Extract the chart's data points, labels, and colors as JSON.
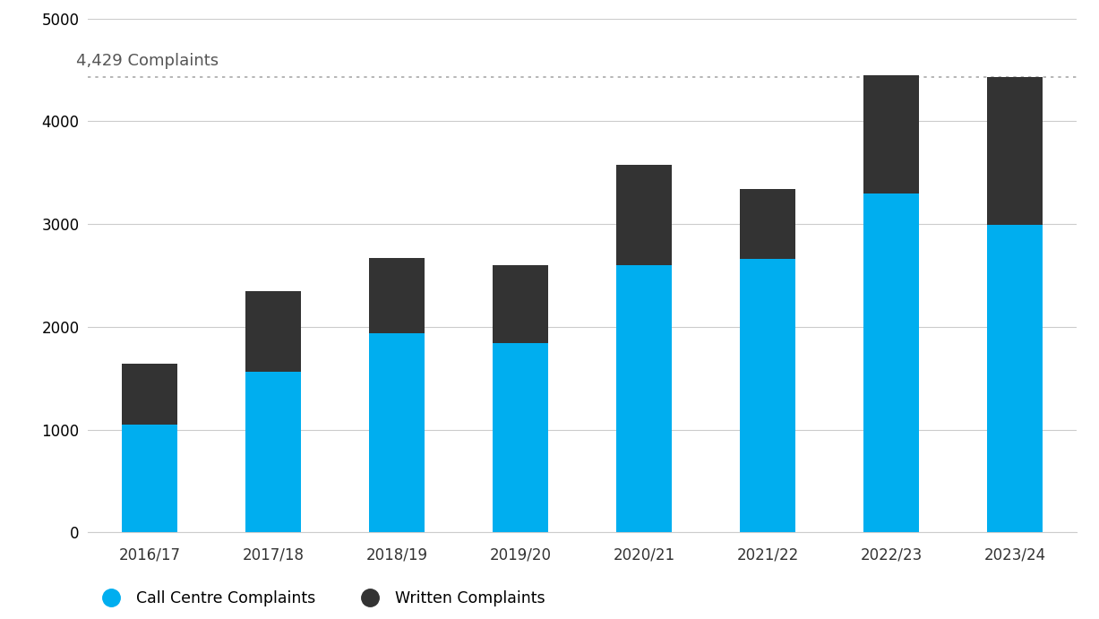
{
  "categories": [
    "2016/17",
    "2017/18",
    "2018/19",
    "2019/20",
    "2020/21",
    "2021/22",
    "2022/23",
    "2023/24"
  ],
  "call_centre": [
    1050,
    1560,
    1940,
    1840,
    2600,
    2660,
    3300,
    2990
  ],
  "written": [
    590,
    790,
    730,
    760,
    975,
    680,
    1150,
    1439
  ],
  "call_colour": "#00AEEF",
  "written_colour": "#333333",
  "annotation_text": "4,429 Complaints",
  "dotted_line_y": 4429,
  "ylim": [
    0,
    5000
  ],
  "yticks": [
    0,
    1000,
    2000,
    3000,
    4000,
    5000
  ],
  "legend_call": "Call Centre Complaints",
  "legend_written": "Written Complaints",
  "background_color": "#ffffff",
  "bar_width": 0.45,
  "grid_color": "#cccccc",
  "tick_label_color": "#333333",
  "annotation_color": "#555555",
  "dotted_color": "#aaaaaa",
  "annotation_fontsize": 13,
  "tick_fontsize": 12
}
